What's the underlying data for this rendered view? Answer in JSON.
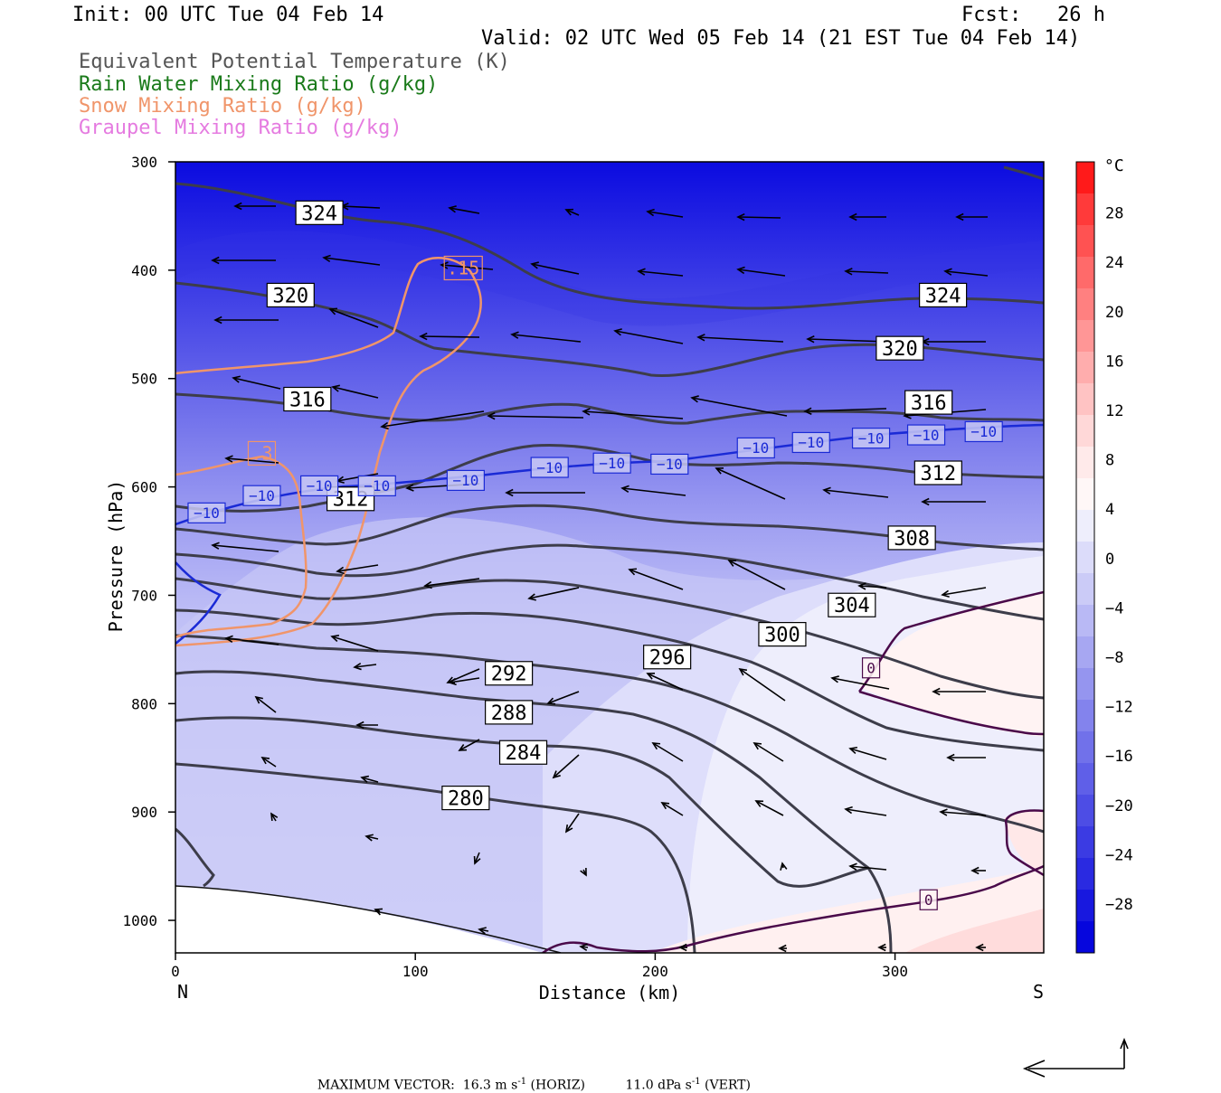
{
  "header": {
    "init": "Init: 00 UTC Tue 04 Feb 14",
    "fcst": "Fcst:   26 h",
    "valid": "Valid: 02 UTC Wed 05 Feb 14 (21 EST Tue 04 Feb 14)"
  },
  "legend": [
    {
      "label": "Equivalent Potential Temperature (K)",
      "color": "#555555"
    },
    {
      "label": "Rain Water Mixing Ratio (g/kg)",
      "color": "#1a7a1a"
    },
    {
      "label": "Snow Mixing Ratio (g/kg)",
      "color": "#f0956a"
    },
    {
      "label": "Graupel Mixing Ratio (g/kg)",
      "color": "#e57be0"
    }
  ],
  "footer": {
    "max_vector_label": "MAXIMUM VECTOR:",
    "horiz": "16.3 m s",
    "horiz_unit": "(HORIZ)",
    "vert": "11.0 dPa s",
    "vert_unit": "(VERT)",
    "exp": "-1"
  },
  "chart_data": {
    "type": "cross-section",
    "xlabel": "Distance (km)",
    "ylabel": "Pressure (hPa)",
    "xlim": [
      0,
      362
    ],
    "ylim": [
      1030,
      300
    ],
    "x_ticks": [
      0,
      100,
      200,
      300
    ],
    "y_ticks": [
      300,
      400,
      500,
      600,
      700,
      800,
      900,
      1000
    ],
    "endpoint_labels": {
      "left": "N",
      "right": "S"
    },
    "colorbar": {
      "unit": "°C",
      "tick_labels": [
        "28",
        "24",
        "20",
        "16",
        "12",
        "8",
        "4",
        "0",
        "−4",
        "−8",
        "−12",
        "−16",
        "−20",
        "−24",
        "−28"
      ],
      "colors_top_to_bottom": [
        "#ff1a1a",
        "#ff3a3a",
        "#ff5252",
        "#ff6a6a",
        "#ff8080",
        "#ff9696",
        "#ffadad",
        "#ffc3c3",
        "#ffd8d8",
        "#ffeaea",
        "#fff7f7",
        "#eeeefc",
        "#dcdcfa",
        "#cbcbf7",
        "#b9b9f5",
        "#a7a7f2",
        "#9595ef",
        "#8383ed",
        "#7171ea",
        "#5f5fe8",
        "#4d4de5",
        "#3b3be3",
        "#2a2ae1",
        "#1818df",
        "#0606dd"
      ]
    },
    "theta_e_labels": [
      {
        "value": "324",
        "x": 60,
        "p": 347
      },
      {
        "value": "324",
        "x": 320,
        "p": 423
      },
      {
        "value": "320",
        "x": 48,
        "p": 423
      },
      {
        "value": "320",
        "x": 302,
        "p": 472
      },
      {
        "value": "316",
        "x": 55,
        "p": 519
      },
      {
        "value": "316",
        "x": 314,
        "p": 522
      },
      {
        "value": "312",
        "x": 73,
        "p": 611
      },
      {
        "value": "312",
        "x": 318,
        "p": 587
      },
      {
        "value": "308",
        "x": 307,
        "p": 647
      },
      {
        "value": "304",
        "x": 282,
        "p": 709
      },
      {
        "value": "300",
        "x": 253,
        "p": 736
      },
      {
        "value": "296",
        "x": 205,
        "p": 757
      },
      {
        "value": "292",
        "x": 139,
        "p": 772
      },
      {
        "value": "288",
        "x": 139,
        "p": 808
      },
      {
        "value": "284",
        "x": 145,
        "p": 845
      },
      {
        "value": "280",
        "x": 121,
        "p": 887
      }
    ],
    "temperature_labels": [
      {
        "value": "−10",
        "x": 13,
        "p": 624
      },
      {
        "value": "−10",
        "x": 36,
        "p": 608
      },
      {
        "value": "−10",
        "x": 60,
        "p": 599
      },
      {
        "value": "−10",
        "x": 84,
        "p": 599
      },
      {
        "value": "−10",
        "x": 121,
        "p": 594
      },
      {
        "value": "−10",
        "x": 156,
        "p": 582
      },
      {
        "value": "−10",
        "x": 182,
        "p": 578
      },
      {
        "value": "−10",
        "x": 206,
        "p": 579
      },
      {
        "value": "−10",
        "x": 242,
        "p": 564
      },
      {
        "value": "−10",
        "x": 265,
        "p": 559
      },
      {
        "value": "−10",
        "x": 290,
        "p": 555
      },
      {
        "value": "−10",
        "x": 313,
        "p": 552
      },
      {
        "value": "−10",
        "x": 337,
        "p": 549
      },
      {
        "value": "0",
        "x": 290,
        "p": 767
      },
      {
        "value": "0",
        "x": 314,
        "p": 981
      }
    ],
    "snow_labels": [
      {
        "value": ".15",
        "x": 120,
        "p": 398
      },
      {
        "value": ".3",
        "x": 36,
        "p": 569
      }
    ]
  }
}
